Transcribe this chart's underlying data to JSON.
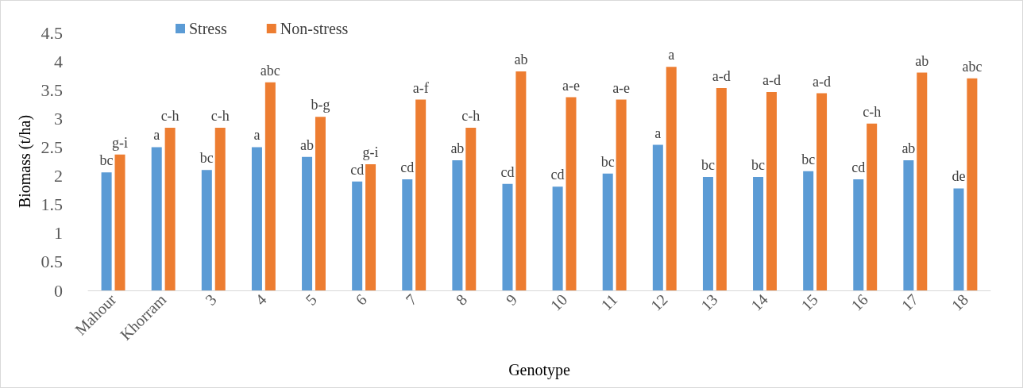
{
  "chart_data": {
    "type": "bar",
    "xlabel": "Genotype",
    "ylabel": "Biomass (t/ha)",
    "categories": [
      "Mahour",
      "Khorram",
      "3",
      "4",
      "5",
      "6",
      "7",
      "8",
      "9",
      "10",
      "11",
      "12",
      "13",
      "14",
      "15",
      "16",
      "17",
      "18"
    ],
    "series": [
      {
        "name": "Stress",
        "color": "#5b9bd5",
        "values": [
          2.06,
          2.5,
          2.1,
          2.5,
          2.33,
          1.9,
          1.94,
          2.27,
          1.86,
          1.81,
          2.04,
          2.54,
          1.98,
          1.98,
          2.08,
          1.94,
          2.27,
          1.78
        ],
        "value_labels": [
          "bc",
          "a",
          "bc",
          "a",
          "ab",
          "cd",
          "cd",
          "ab",
          "cd",
          "cd",
          "bc",
          "a",
          "bc",
          "bc",
          "bc",
          "cd",
          "ab",
          "de"
        ]
      },
      {
        "name": "Non-stress",
        "color": "#ed7d31",
        "values": [
          2.37,
          2.84,
          2.84,
          3.63,
          3.03,
          2.2,
          3.33,
          2.84,
          3.82,
          3.37,
          3.33,
          3.9,
          3.53,
          3.46,
          3.44,
          2.91,
          3.8,
          3.7
        ],
        "value_labels": [
          "g-i",
          "c-h",
          "c-h",
          "abc",
          "b-g",
          "g-i",
          "a-f",
          "c-h",
          "ab",
          "a-e",
          "a-e",
          "a",
          "a-d",
          "a-d",
          "a-d",
          "c-h",
          "ab",
          "abc"
        ]
      }
    ],
    "ylim": [
      0,
      4.5
    ],
    "yticks": [
      0,
      0.5,
      1,
      1.5,
      2,
      2.5,
      3,
      3.5,
      4,
      4.5
    ],
    "grid": false,
    "legend": "top left"
  }
}
